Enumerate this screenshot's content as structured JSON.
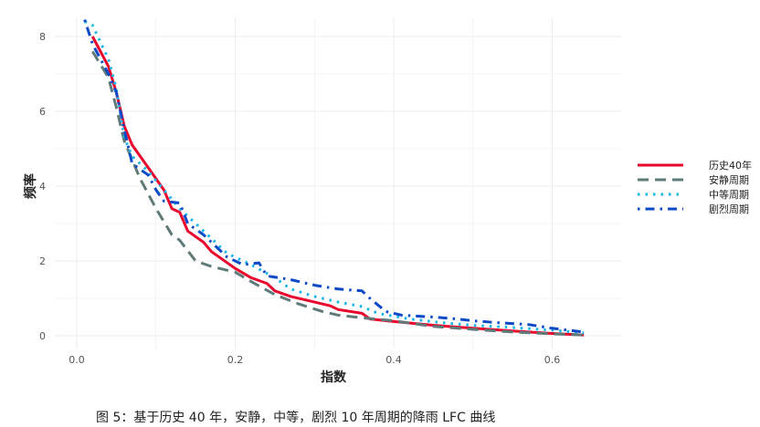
{
  "chart_data": {
    "type": "line",
    "title": "",
    "xlabel": "指数",
    "ylabel": "频率",
    "xlim": [
      -0.01,
      0.65
    ],
    "ylim": [
      -0.3,
      8.7
    ],
    "xticks": [
      0.0,
      0.2,
      0.4,
      0.6
    ],
    "xtick_labels": [
      "0.0",
      "0.2",
      "0.4",
      "0.6"
    ],
    "yticks": [
      0,
      2,
      4,
      6,
      8
    ],
    "ytick_labels": [
      "0",
      "2",
      "4",
      "6",
      "8"
    ],
    "grid": true,
    "legend_position": "right",
    "caption": "图 5：基于历史 40 年，安静，中等，剧烈 10 年周期的降雨 LFC 曲线",
    "series": [
      {
        "name": "历史40年",
        "color": "#e8062d",
        "style": "solid",
        "x": [
          0.02,
          0.04,
          0.05,
          0.06,
          0.07,
          0.09,
          0.11,
          0.12,
          0.13,
          0.14,
          0.16,
          0.17,
          0.2,
          0.22,
          0.24,
          0.25,
          0.27,
          0.3,
          0.32,
          0.33,
          0.36,
          0.37,
          0.4,
          0.45,
          0.5,
          0.55,
          0.6,
          0.64
        ],
        "y": [
          8.0,
          7.2,
          6.5,
          5.6,
          5.1,
          4.5,
          3.9,
          3.4,
          3.3,
          2.8,
          2.5,
          2.25,
          1.8,
          1.55,
          1.4,
          1.2,
          1.05,
          0.9,
          0.8,
          0.7,
          0.6,
          0.45,
          0.38,
          0.28,
          0.2,
          0.13,
          0.06,
          0.02
        ]
      },
      {
        "name": "安静周期",
        "color": "#5f7a78",
        "style": "dashed",
        "x": [
          0.02,
          0.04,
          0.05,
          0.06,
          0.08,
          0.1,
          0.12,
          0.13,
          0.15,
          0.17,
          0.2,
          0.22,
          0.25,
          0.28,
          0.31,
          0.33,
          0.36,
          0.4,
          0.45,
          0.5,
          0.55,
          0.6,
          0.64
        ],
        "y": [
          7.6,
          6.9,
          6.1,
          5.2,
          4.2,
          3.4,
          2.7,
          2.55,
          2.0,
          1.85,
          1.7,
          1.45,
          1.1,
          0.85,
          0.65,
          0.55,
          0.48,
          0.4,
          0.25,
          0.17,
          0.1,
          0.05,
          0.02
        ]
      },
      {
        "name": "中等周期",
        "color": "#16b5e8",
        "style": "dotted",
        "x": [
          0.01,
          0.02,
          0.04,
          0.05,
          0.06,
          0.07,
          0.09,
          0.11,
          0.13,
          0.15,
          0.17,
          0.19,
          0.22,
          0.25,
          0.27,
          0.3,
          0.33,
          0.36,
          0.38,
          0.42,
          0.46,
          0.5,
          0.55,
          0.6,
          0.64
        ],
        "y": [
          8.4,
          8.3,
          7.4,
          6.6,
          5.3,
          4.8,
          4.4,
          3.9,
          3.4,
          3.0,
          2.6,
          2.2,
          1.9,
          1.55,
          1.25,
          1.05,
          0.9,
          0.78,
          0.6,
          0.45,
          0.35,
          0.28,
          0.22,
          0.15,
          0.08
        ]
      },
      {
        "name": "剧烈周期",
        "color": "#0a49c8",
        "style": "dashdot",
        "x": [
          0.01,
          0.02,
          0.04,
          0.05,
          0.06,
          0.07,
          0.09,
          0.1,
          0.11,
          0.13,
          0.14,
          0.16,
          0.19,
          0.21,
          0.23,
          0.24,
          0.27,
          0.3,
          0.33,
          0.36,
          0.37,
          0.39,
          0.41,
          0.45,
          0.48,
          0.5,
          0.53,
          0.57,
          0.6,
          0.64
        ],
        "y": [
          8.45,
          7.8,
          7.0,
          6.5,
          5.5,
          4.6,
          4.3,
          3.9,
          3.6,
          3.55,
          3.0,
          2.7,
          2.1,
          1.9,
          1.95,
          1.6,
          1.5,
          1.35,
          1.25,
          1.2,
          1.0,
          0.65,
          0.55,
          0.5,
          0.45,
          0.4,
          0.35,
          0.3,
          0.2,
          0.1
        ]
      }
    ]
  }
}
